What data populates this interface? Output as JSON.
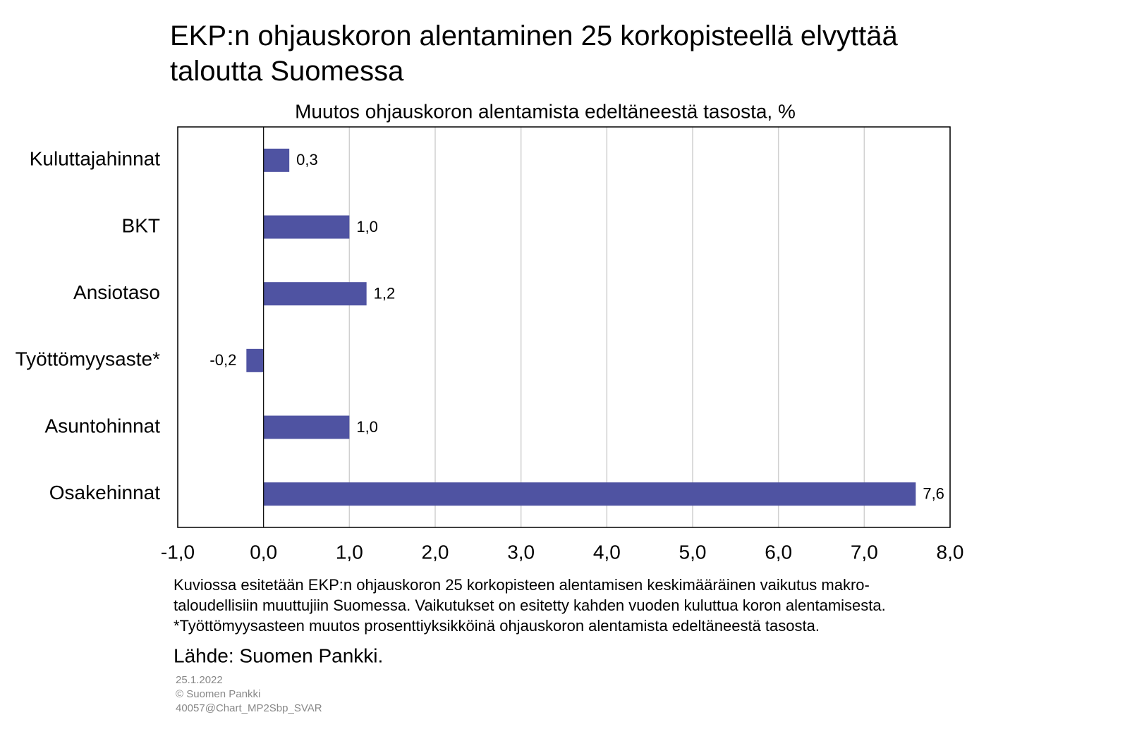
{
  "chart_data": {
    "type": "bar",
    "orientation": "horizontal",
    "title": "EKP:n ohjauskoron alentaminen 25 korkopisteellä elvyttää taloutta Suomessa",
    "subtitle": "Muutos ohjauskoron alentamista edeltäneestä tasosta, %",
    "categories": [
      "Kuluttajahinnat",
      "BKT",
      "Ansiotaso",
      "Työttömyysaste*",
      "Asuntohinnat",
      "Osakehinnat"
    ],
    "values": [
      0.3,
      1.0,
      1.2,
      -0.2,
      1.0,
      7.6
    ],
    "value_labels": [
      "0,3",
      "1,0",
      "1,2",
      "-0,2",
      "1,0",
      "7,6"
    ],
    "color": "#4f53a2",
    "xlim": [
      -1,
      8
    ],
    "xticks": [
      {
        "value": -1,
        "label": "-1,0"
      },
      {
        "value": 0,
        "label": "0,0"
      },
      {
        "value": 1,
        "label": "1,0"
      },
      {
        "value": 2,
        "label": "2,0"
      },
      {
        "value": 3,
        "label": "3,0"
      },
      {
        "value": 4,
        "label": "4,0"
      },
      {
        "value": 5,
        "label": "5,0"
      },
      {
        "value": 6,
        "label": "6,0"
      },
      {
        "value": 7,
        "label": "7,0"
      },
      {
        "value": 8,
        "label": "8,0"
      }
    ],
    "grid": true,
    "notes": [
      "Kuviossa esitetään EKP:n ohjauskoron 25 korkopisteen alentamisen keskimääräinen vaikutus makro-",
      "taloudellisiin muuttujiin Suomessa. Vaikutukset on esitetty kahden vuoden kuluttua koron alentamisesta.",
      "*Työttömyysasteen muutos prosenttiyksikköinä ohjauskoron alentamista edeltäneestä tasosta."
    ],
    "source": "Lähde: Suomen Pankki.",
    "footer": [
      "25.1.2022",
      "© Suomen  Pankki",
      "40057@Chart_MP2Sbp_SVAR"
    ]
  }
}
